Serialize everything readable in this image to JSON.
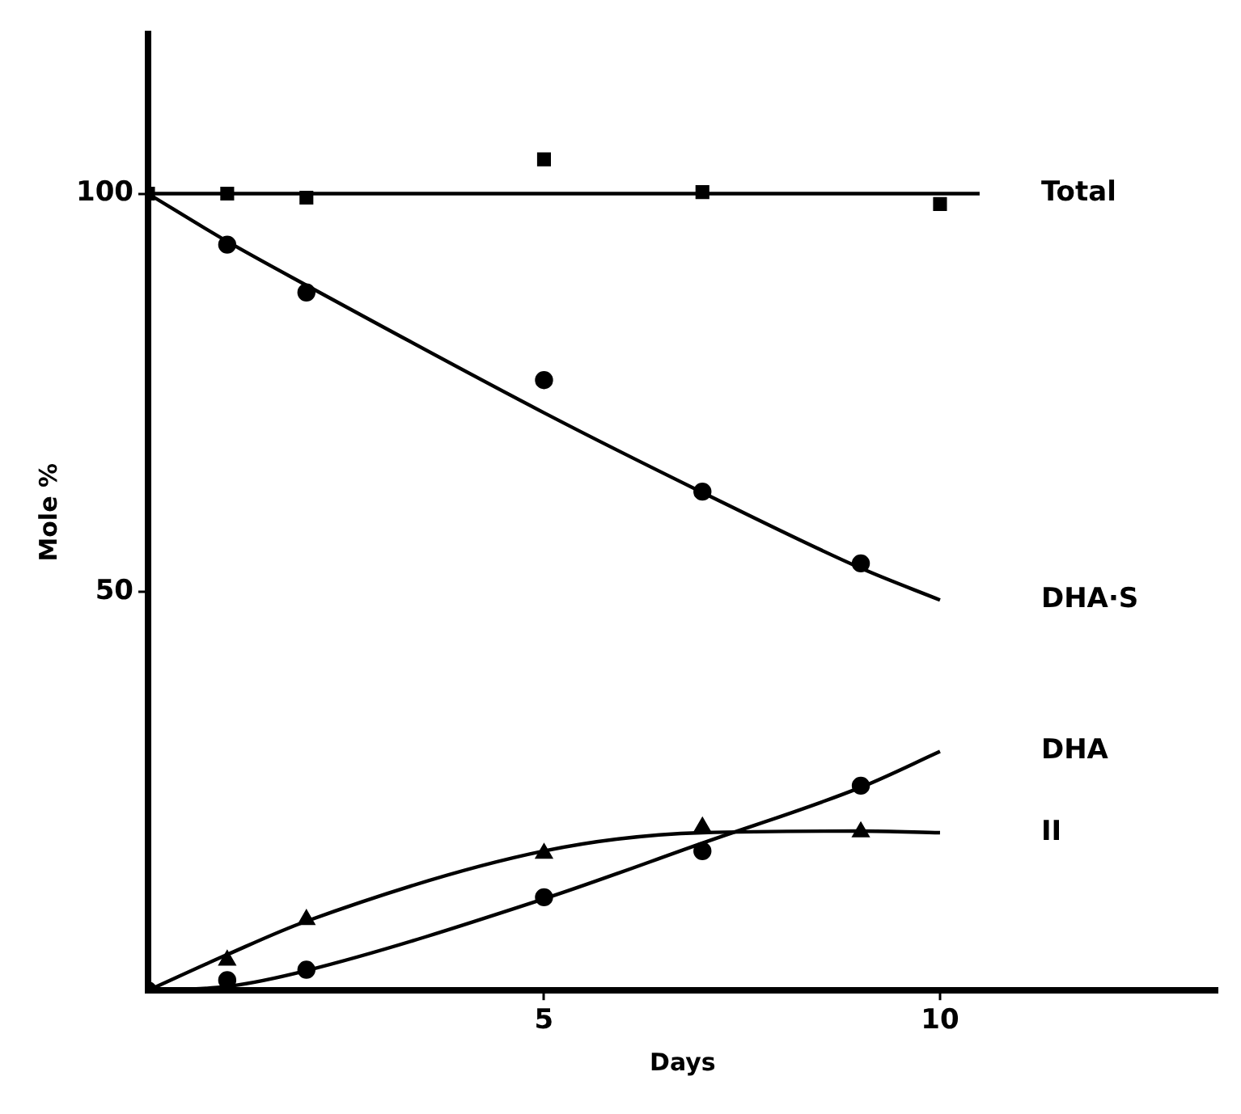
{
  "chart_data": {
    "type": "scatter",
    "xlabel": "Days",
    "ylabel": "Mole %",
    "xlim": [
      0,
      13.5
    ],
    "ylim": [
      0,
      120
    ],
    "xticks": [
      5,
      10
    ],
    "yticks": [
      50,
      100
    ],
    "grid": false,
    "legend": false,
    "series": [
      {
        "name": "Total",
        "marker": "square",
        "color": "#000000",
        "x": [
          0,
          1,
          2,
          5,
          7,
          10
        ],
        "values": [
          100,
          100,
          99.5,
          104.3,
          100.2,
          98.7
        ]
      },
      {
        "type": "line",
        "marker": "none",
        "color": "#000000",
        "x": [
          0,
          10.5
        ],
        "values": [
          100,
          100
        ]
      },
      {
        "name": "DHA·S",
        "marker": "circle",
        "color": "#000000",
        "x": [
          1,
          2,
          5,
          7,
          9
        ],
        "values": [
          93.6,
          87.6,
          76.6,
          62.6,
          53.6
        ]
      },
      {
        "type": "line",
        "marker": "none",
        "color": "#000000",
        "x": [
          0,
          1,
          2,
          5,
          7,
          9,
          10
        ],
        "values": [
          100,
          94,
          88.5,
          72.5,
          62.5,
          53,
          49
        ]
      },
      {
        "name": "DHA",
        "marker": "circle",
        "color": "#000000",
        "x": [
          0,
          1,
          2,
          5,
          7,
          9
        ],
        "values": [
          0,
          1.3,
          2.6,
          11.7,
          17.5,
          25.7
        ]
      },
      {
        "type": "line",
        "marker": "none",
        "color": "#000000",
        "x": [
          0,
          1,
          2,
          5,
          7,
          9,
          10
        ],
        "values": [
          0,
          0.5,
          2.5,
          11.5,
          18.5,
          25.5,
          30
        ]
      },
      {
        "name": "II",
        "marker": "triangle",
        "color": "#000000",
        "x": [
          1,
          2,
          5,
          7,
          9
        ],
        "values": [
          3.8,
          8.9,
          17.2,
          20.5,
          19.9
        ]
      },
      {
        "type": "line",
        "marker": "none",
        "color": "#000000",
        "x": [
          0,
          1,
          2,
          5,
          7,
          9,
          10
        ],
        "values": [
          0,
          4.5,
          8.7,
          17.5,
          19.8,
          20,
          19.8
        ]
      }
    ]
  }
}
